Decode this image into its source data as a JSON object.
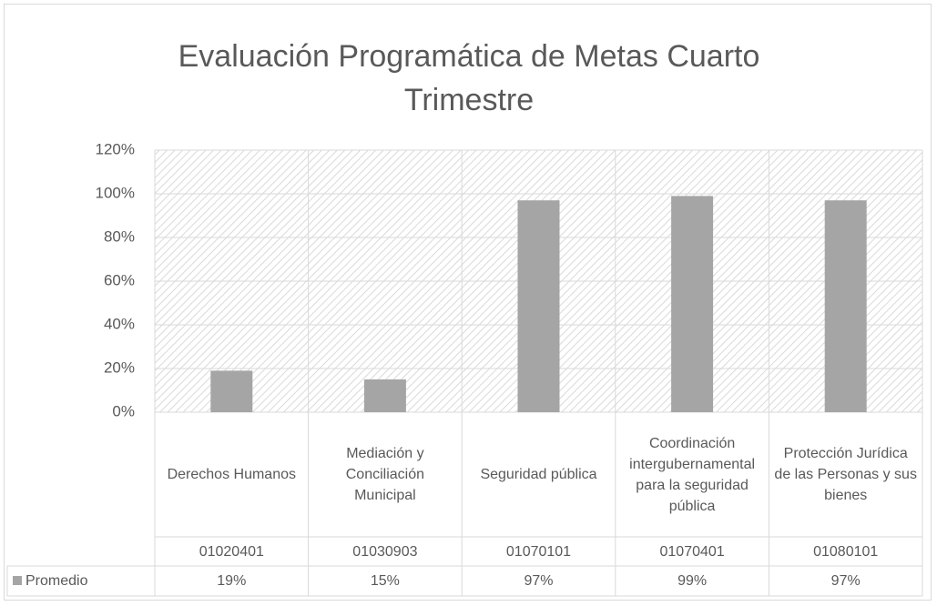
{
  "chart_data": {
    "type": "bar",
    "title": "Evaluación Programática de Metas Cuarto Trimestre",
    "categories": [
      "Derechos Humanos",
      "Mediación y Conciliación Municipal",
      "Seguridad pública",
      "Coordinación intergubernamental para la seguridad pública",
      "Protección Jurídica de las Personas y sus bienes"
    ],
    "category_codes": [
      "01020401",
      "01030903",
      "01070101",
      "01070401",
      "01080101"
    ],
    "series": [
      {
        "name": "Promedio",
        "color": "#a5a5a5",
        "values": [
          19,
          15,
          97,
          99,
          97
        ],
        "value_labels": [
          "19%",
          "15%",
          "97%",
          "99%",
          "97%"
        ]
      }
    ],
    "ylim": [
      0,
      120
    ],
    "yticks": [
      {
        "value": 0,
        "label": "0%"
      },
      {
        "value": 20,
        "label": "20%"
      },
      {
        "value": 40,
        "label": "40%"
      },
      {
        "value": 60,
        "label": "60%"
      },
      {
        "value": 80,
        "label": "80%"
      },
      {
        "value": 100,
        "label": "100%"
      },
      {
        "value": 120,
        "label": "120%"
      }
    ],
    "grid": true
  }
}
